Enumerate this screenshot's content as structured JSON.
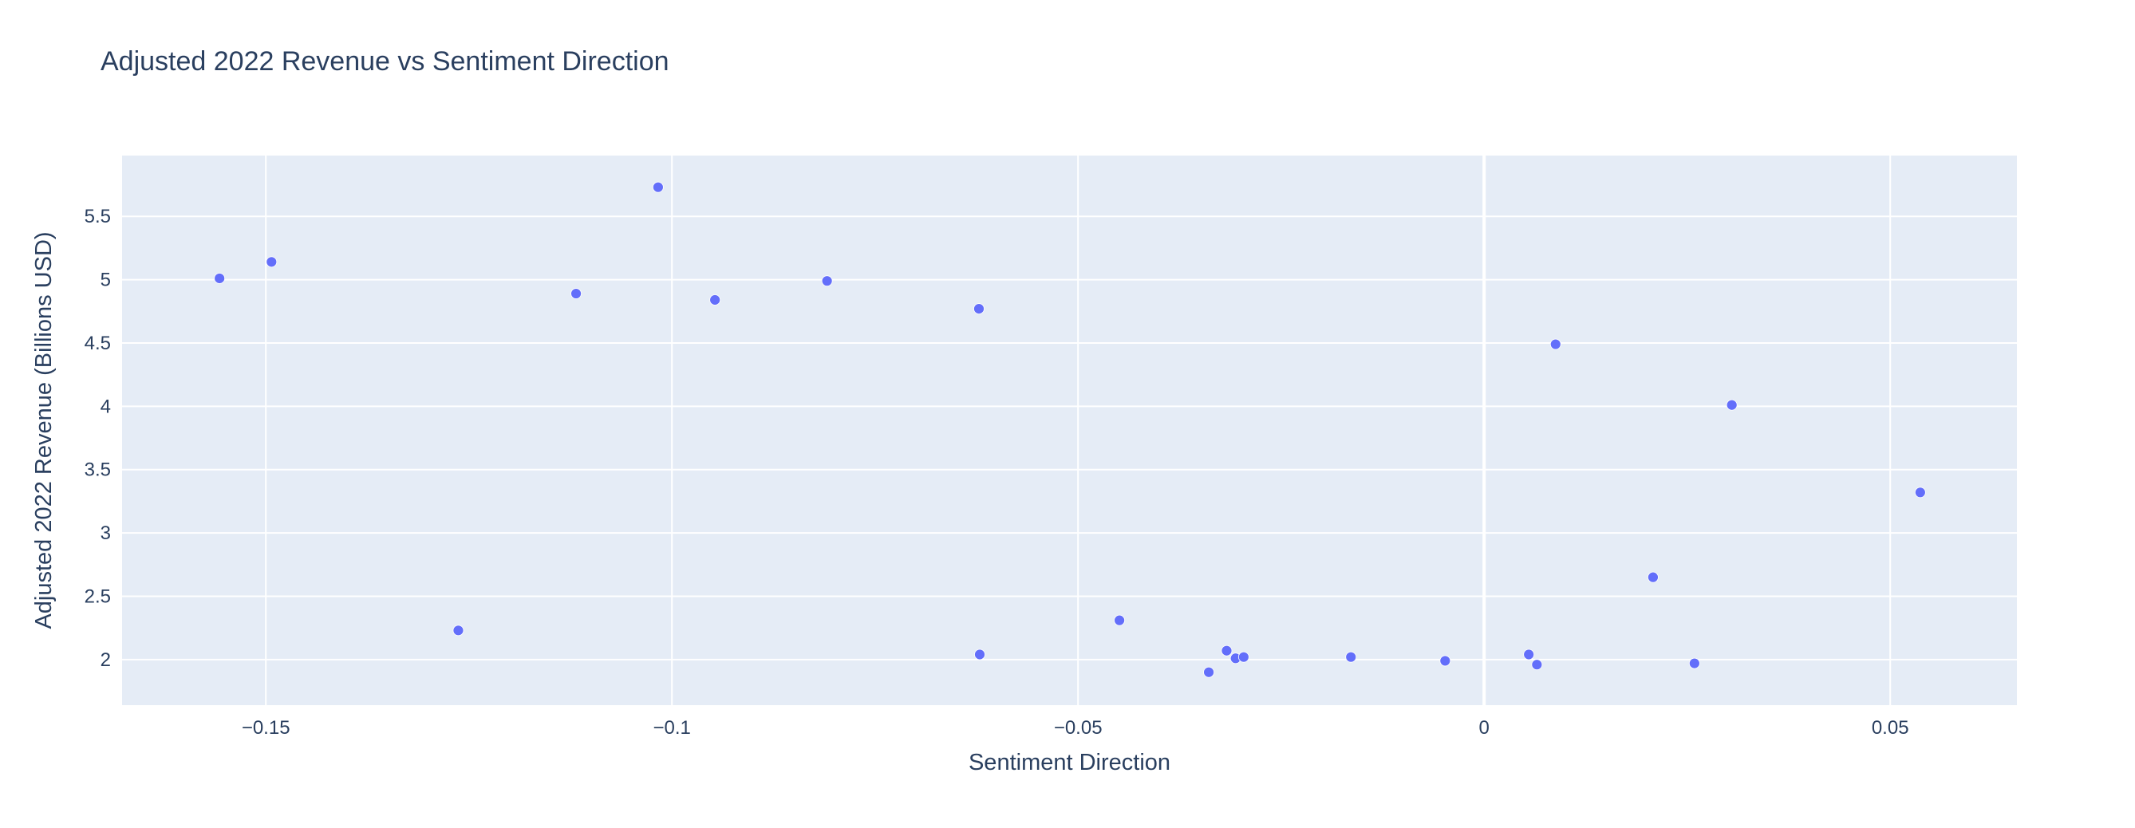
{
  "chart_data": {
    "type": "scatter",
    "title": "Adjusted 2022 Revenue vs Sentiment Direction",
    "xlabel": "Sentiment Direction",
    "ylabel": "Adjusted 2022 Revenue (Billions USD)",
    "xlim": [
      -0.1677,
      0.0656
    ],
    "ylim": [
      1.64,
      5.98
    ],
    "x_ticks": [
      -0.15,
      -0.1,
      -0.05,
      0,
      0.05
    ],
    "x_tick_labels": [
      "−0.15",
      "−0.1",
      "−0.05",
      "0",
      "0.05"
    ],
    "y_ticks": [
      2,
      2.5,
      3,
      3.5,
      4,
      4.5,
      5,
      5.5
    ],
    "y_tick_labels": [
      "2",
      "2.5",
      "3",
      "3.5",
      "4",
      "4.5",
      "5",
      "5.5"
    ],
    "grid": true,
    "colors": {
      "marker": "#636efa",
      "plot_bg": "#e5ecf6",
      "grid": "#ffffff",
      "text": "#2a3f5f"
    },
    "points": [
      {
        "x": -0.1557,
        "y": 5.01
      },
      {
        "x": -0.1493,
        "y": 5.14
      },
      {
        "x": -0.1263,
        "y": 2.23
      },
      {
        "x": -0.1118,
        "y": 4.89
      },
      {
        "x": -0.1017,
        "y": 5.73
      },
      {
        "x": -0.0947,
        "y": 4.84
      },
      {
        "x": -0.0809,
        "y": 4.99
      },
      {
        "x": -0.0622,
        "y": 4.77
      },
      {
        "x": -0.0621,
        "y": 2.04
      },
      {
        "x": -0.0449,
        "y": 2.31
      },
      {
        "x": -0.0339,
        "y": 1.9
      },
      {
        "x": -0.0317,
        "y": 2.07
      },
      {
        "x": -0.0306,
        "y": 2.01
      },
      {
        "x": -0.0296,
        "y": 2.02
      },
      {
        "x": -0.0164,
        "y": 2.02
      },
      {
        "x": -0.0048,
        "y": 1.99
      },
      {
        "x": 0.0055,
        "y": 2.04
      },
      {
        "x": 0.0065,
        "y": 1.96
      },
      {
        "x": 0.0088,
        "y": 4.49
      },
      {
        "x": 0.0208,
        "y": 2.65
      },
      {
        "x": 0.0259,
        "y": 1.97
      },
      {
        "x": 0.0305,
        "y": 4.01
      },
      {
        "x": 0.0537,
        "y": 3.32
      }
    ]
  }
}
